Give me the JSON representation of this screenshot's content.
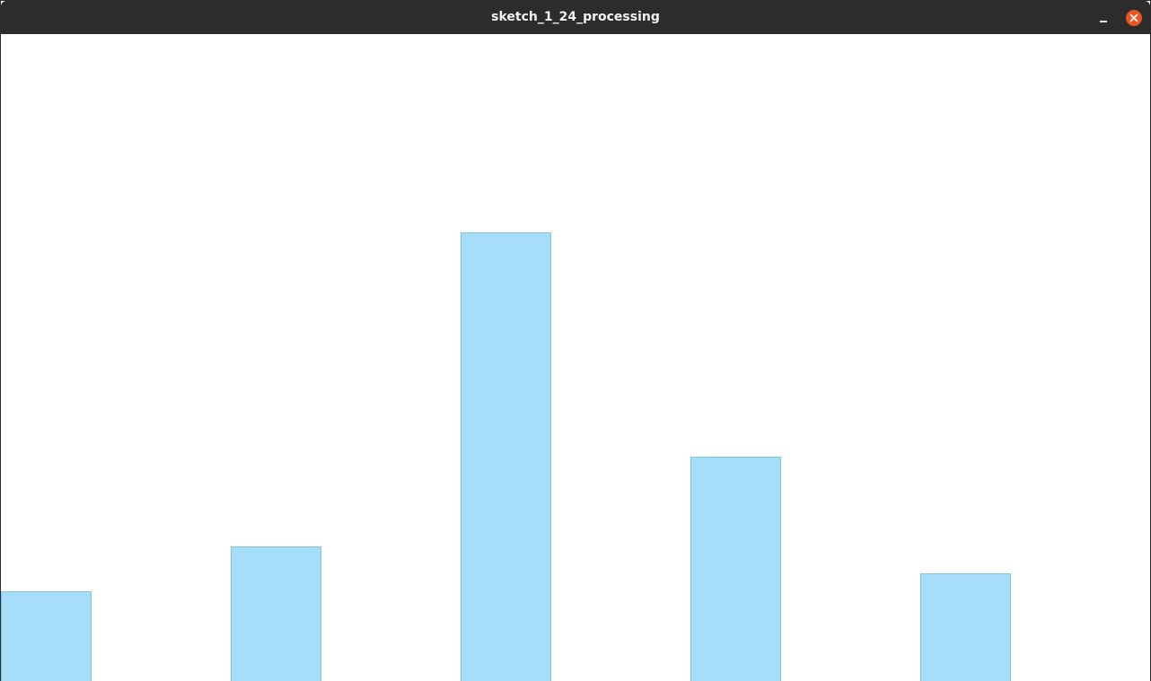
{
  "window": {
    "title": "sketch_1_24_processing",
    "controls": {
      "minimize_icon": "minimize-icon",
      "close_icon": "close-icon",
      "close_color": "#e95420"
    }
  },
  "chart_data": {
    "type": "bar",
    "values": [
      100,
      150,
      500,
      250,
      120
    ],
    "ylim": [
      0,
      721
    ],
    "grid": false,
    "bar_fill": "#a6defa",
    "bar_stroke": "#7fc4e8"
  }
}
